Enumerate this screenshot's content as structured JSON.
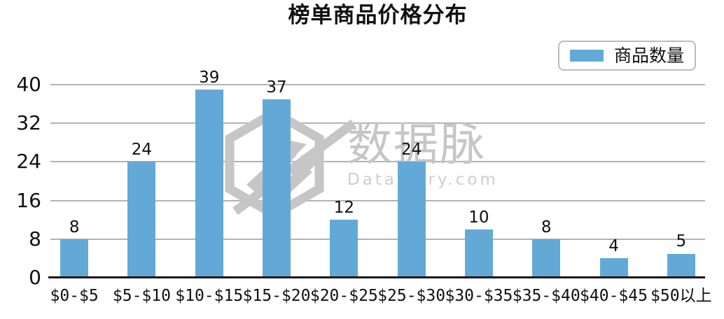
{
  "title": "榜单商品价格分布",
  "legend": {
    "label": "商品数量",
    "swatch_color": "#63a9d8"
  },
  "watermark": {
    "brand": "数据脉",
    "domain": "Datartery.com",
    "logo": "hexagon-pulse-logo",
    "color": "#c6c6c6"
  },
  "colors": {
    "bar": "#63a9d8",
    "gridline": "#b3b3b3",
    "axis": "#1a1a1a",
    "text": "#111111",
    "legend_border": "#bcbcbc"
  },
  "chart_data": {
    "type": "bar",
    "title": "榜单商品价格分布",
    "series_name": "商品数量",
    "categories": [
      "$0-$5",
      "$5-$10",
      "$10-$15",
      "$15-$20",
      "$20-$25",
      "$25-$30",
      "$30-$35",
      "$35-$40",
      "$40-$45",
      "$50以上"
    ],
    "values": [
      8,
      24,
      39,
      37,
      12,
      24,
      10,
      8,
      4,
      5
    ],
    "xlabel": "",
    "ylabel": "",
    "ylim": [
      0,
      40
    ],
    "yticks": [
      0,
      8,
      16,
      24,
      32,
      40
    ],
    "grid": "horizontal",
    "legend_position": "top-right",
    "bar_color": "#63a9d8",
    "value_labels": "above-bars"
  }
}
